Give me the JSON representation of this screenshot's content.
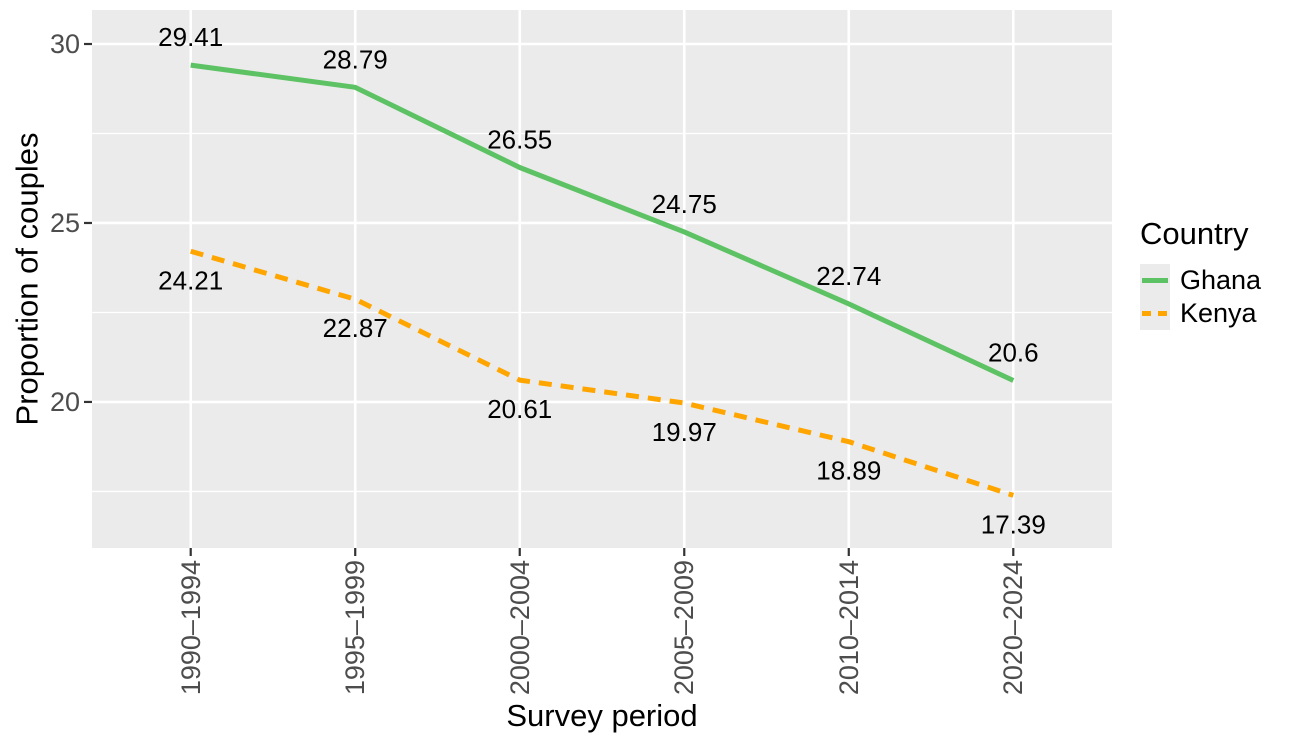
{
  "figure": {
    "background": "#FFFFFF",
    "panel_bg": "#EBEBEB",
    "grid_color": "#FFFFFF",
    "axis_tick_color": "#333333",
    "axis_text_color": "#4D4D4D",
    "label_color": "#000000"
  },
  "chart_data": {
    "type": "line",
    "title": "",
    "xlabel": "Survey period",
    "ylabel": "Proportion of couples",
    "categories": [
      "1990–1994",
      "1995–1999",
      "2000–2004",
      "2005–2009",
      "2010–2014",
      "2020–2024"
    ],
    "series": [
      {
        "name": "Ghana",
        "color": "#5DC263",
        "linestyle": "solid",
        "values": [
          29.41,
          28.79,
          26.55,
          24.75,
          22.74,
          20.6
        ],
        "label_position": "above"
      },
      {
        "name": "Kenya",
        "color": "#FFA500",
        "linestyle": "dashed",
        "values": [
          24.21,
          22.87,
          20.61,
          19.97,
          18.89,
          17.39
        ],
        "label_position": "below"
      }
    ],
    "ylim": [
      15.92,
      30.95
    ],
    "y_major_ticks": [
      20,
      25,
      30
    ],
    "y_minor_gridlines": [
      17.5,
      22.5,
      27.5
    ],
    "grid": "major-and-minor-horizontal, major-vertical",
    "legend": {
      "title": "Country",
      "position": "right",
      "entries": [
        "Ghana",
        "Kenya"
      ]
    }
  }
}
